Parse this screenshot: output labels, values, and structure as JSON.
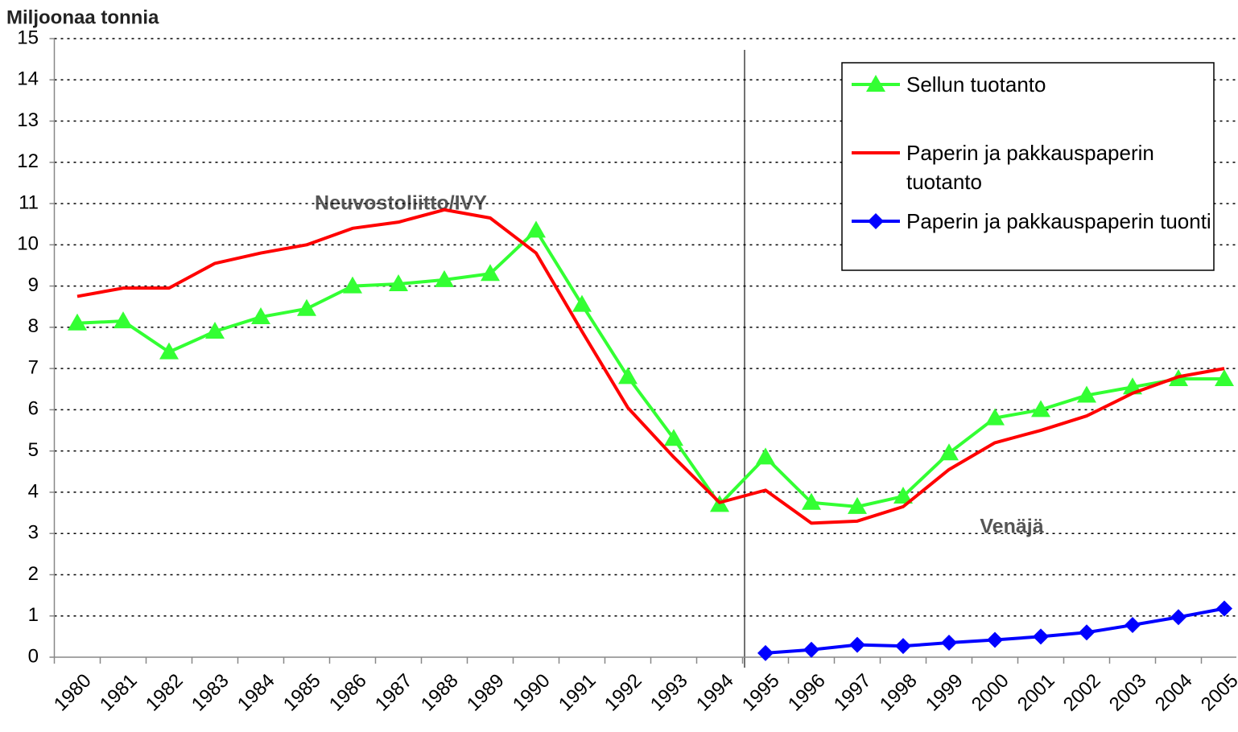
{
  "chart_data": {
    "type": "line",
    "y_label": "Miljoonaa tonnia",
    "categories": [
      "1980",
      "1981",
      "1982",
      "1983",
      "1984",
      "1985",
      "1986",
      "1987",
      "1988",
      "1989",
      "1990",
      "1991",
      "1992",
      "1993",
      "1994",
      "1995",
      "1996",
      "1997",
      "1998",
      "1999",
      "2000",
      "2001",
      "2002",
      "2003",
      "2004",
      "2005"
    ],
    "series": [
      {
        "name": "Sellun tuotanto",
        "color": "#33ff33",
        "marker": "triangle",
        "values": [
          8.1,
          8.15,
          7.4,
          7.9,
          8.25,
          8.45,
          9.0,
          9.05,
          9.15,
          9.3,
          10.35,
          8.55,
          6.8,
          5.3,
          3.7,
          4.85,
          3.75,
          3.65,
          3.9,
          4.95,
          5.8,
          6.0,
          6.35,
          6.55,
          6.75,
          6.75
        ]
      },
      {
        "name": "Paperin ja pakkauspaperin tuotanto",
        "color": "#ff0000",
        "marker": "none",
        "values": [
          8.75,
          8.95,
          8.95,
          9.55,
          9.8,
          10.0,
          10.4,
          10.55,
          10.85,
          10.65,
          9.8,
          7.9,
          6.05,
          4.85,
          3.75,
          4.05,
          3.25,
          3.3,
          3.65,
          4.55,
          5.2,
          5.5,
          5.85,
          6.4,
          6.8,
          7.0
        ]
      },
      {
        "name": "Paperin ja pakkauspaperin tuonti",
        "color": "#0000ff",
        "marker": "diamond",
        "values": [
          null,
          null,
          null,
          null,
          null,
          null,
          null,
          null,
          null,
          null,
          null,
          null,
          null,
          null,
          null,
          0.1,
          0.18,
          0.3,
          0.27,
          0.35,
          0.42,
          0.5,
          0.6,
          0.78,
          0.97,
          1.18
        ]
      }
    ],
    "annotations": [
      "Neuvostoliitto/IVY",
      "Venäjä"
    ],
    "ylim": [
      0,
      15
    ],
    "yticks": [
      0,
      1,
      2,
      3,
      4,
      5,
      6,
      7,
      8,
      9,
      10,
      11,
      12,
      13,
      14,
      15
    ],
    "grid": true,
    "legend": "upper right"
  }
}
